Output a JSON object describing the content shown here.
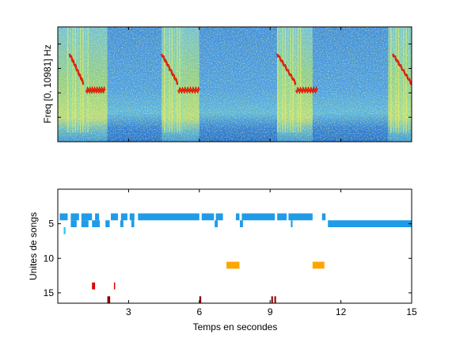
{
  "chart_data": [
    {
      "type": "heatmap",
      "ylabel": "Freq [0, 10981] Hz",
      "xlim": [
        0,
        15
      ],
      "colormap": "jet",
      "voiced_segments": [
        [
          0.0,
          2.1
        ],
        [
          4.4,
          6.0
        ],
        [
          9.3,
          10.8
        ],
        [
          14.0,
          15.0
        ]
      ],
      "vertical_striations": [
        [
          0.4,
          1.3
        ],
        [
          4.5,
          5.3
        ],
        [
          9.3,
          10.3
        ],
        [
          14.1,
          14.9
        ]
      ],
      "red_traces": [
        {
          "start": 0.5,
          "end": 1.1,
          "desc": "descending"
        },
        {
          "start": 1.2,
          "end": 2.0,
          "desc": "flat"
        },
        {
          "start": 4.4,
          "end": 5.1,
          "desc": "descending"
        },
        {
          "start": 5.1,
          "end": 6.0,
          "desc": "flat"
        },
        {
          "start": 9.3,
          "end": 10.1,
          "desc": "descending"
        },
        {
          "start": 10.1,
          "end": 11.0,
          "desc": "flat"
        },
        {
          "start": 14.2,
          "end": 15.0,
          "desc": "descending"
        }
      ]
    },
    {
      "type": "scatter",
      "xlabel": "Temps en secondes",
      "ylabel": "Unites de songs",
      "xlim": [
        0,
        15
      ],
      "ylim": [
        16.5,
        0
      ],
      "xticks": [
        3,
        6,
        9,
        12,
        15
      ],
      "yticks": [
        5,
        10,
        15
      ],
      "segments": [
        {
          "unit": 4,
          "start": 0.08,
          "end": 0.42,
          "color": "#1f9be8"
        },
        {
          "unit": 4,
          "start": 0.55,
          "end": 0.9,
          "color": "#1f9be8"
        },
        {
          "unit": 4,
          "start": 1.0,
          "end": 1.45,
          "color": "#1f9be8"
        },
        {
          "unit": 4,
          "start": 1.58,
          "end": 1.75,
          "color": "#1f9be8"
        },
        {
          "unit": 4,
          "start": 2.25,
          "end": 2.55,
          "color": "#1f9be8"
        },
        {
          "unit": 4,
          "start": 2.68,
          "end": 2.95,
          "color": "#1f9be8"
        },
        {
          "unit": 4,
          "start": 3.05,
          "end": 3.25,
          "color": "#1f9be8"
        },
        {
          "unit": 4,
          "start": 3.4,
          "end": 6.0,
          "color": "#1f9be8"
        },
        {
          "unit": 4,
          "start": 6.1,
          "end": 6.62,
          "color": "#1f9be8"
        },
        {
          "unit": 4,
          "start": 6.7,
          "end": 7.0,
          "color": "#1f9be8"
        },
        {
          "unit": 4,
          "start": 7.55,
          "end": 7.7,
          "color": "#1f9be8"
        },
        {
          "unit": 4,
          "start": 7.8,
          "end": 9.2,
          "color": "#1f9be8"
        },
        {
          "unit": 4,
          "start": 9.3,
          "end": 9.7,
          "color": "#1f9be8"
        },
        {
          "unit": 4,
          "start": 9.78,
          "end": 10.8,
          "color": "#1f9be8"
        },
        {
          "unit": 4,
          "start": 11.2,
          "end": 11.35,
          "color": "#1f9be8"
        },
        {
          "unit": 5,
          "start": 0.55,
          "end": 0.8,
          "color": "#1f9be8"
        },
        {
          "unit": 5,
          "start": 1.0,
          "end": 1.3,
          "color": "#1f9be8"
        },
        {
          "unit": 5,
          "start": 1.45,
          "end": 1.78,
          "color": "#1f9be8"
        },
        {
          "unit": 5,
          "start": 2.02,
          "end": 2.2,
          "color": "#1f9be8"
        },
        {
          "unit": 5,
          "start": 2.65,
          "end": 2.78,
          "color": "#1f9be8"
        },
        {
          "unit": 5,
          "start": 3.12,
          "end": 3.24,
          "color": "#1f9be8"
        },
        {
          "unit": 5,
          "start": 6.65,
          "end": 6.78,
          "color": "#1f9be8"
        },
        {
          "unit": 5,
          "start": 7.72,
          "end": 7.85,
          "color": "#1f9be8"
        },
        {
          "unit": 5,
          "start": 9.88,
          "end": 9.95,
          "color": "#1f9be8"
        },
        {
          "unit": 5,
          "start": 11.45,
          "end": 15.0,
          "color": "#1f9be8"
        },
        {
          "unit": 6,
          "start": 0.25,
          "end": 0.33,
          "color": "#2fc8f0"
        },
        {
          "unit": 11,
          "start": 7.15,
          "end": 7.7,
          "color": "#ffa500"
        },
        {
          "unit": 11,
          "start": 10.8,
          "end": 11.3,
          "color": "#ffa500"
        },
        {
          "unit": 14,
          "start": 1.45,
          "end": 1.58,
          "color": "#e00000"
        },
        {
          "unit": 14,
          "start": 2.38,
          "end": 2.43,
          "color": "#e00000"
        },
        {
          "unit": 16,
          "start": 2.1,
          "end": 2.22,
          "color": "#8b0000"
        },
        {
          "unit": 16,
          "start": 6.0,
          "end": 6.08,
          "color": "#8b0000"
        },
        {
          "unit": 16,
          "start": 9.05,
          "end": 9.12,
          "color": "#8b0000"
        },
        {
          "unit": 16,
          "start": 9.18,
          "end": 9.25,
          "color": "#8b0000"
        }
      ]
    }
  ]
}
